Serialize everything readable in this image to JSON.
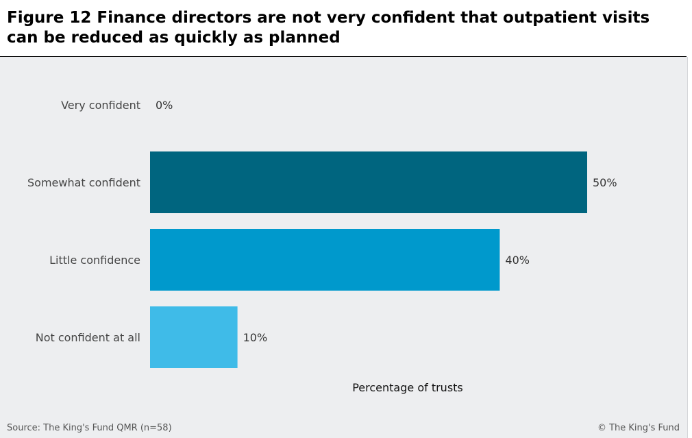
{
  "title": "Figure 12 Finance directors are not very confident that outpatient visits can be reduced as quickly as planned",
  "source": "Source: The King's Fund QMR (n=58)",
  "copyright": "© The King's Fund",
  "chart_data": {
    "type": "bar",
    "orientation": "horizontal",
    "categories": [
      "Very confident",
      "Somewhat confident",
      "Little confidence",
      "Not confident at all"
    ],
    "values": [
      0,
      50,
      40,
      10
    ],
    "value_labels": [
      "0%",
      "50%",
      "40%",
      "10%"
    ],
    "colors": [
      "#00657f",
      "#00657f",
      "#0099cc",
      "#3fbbe8"
    ],
    "xlabel": "Percentage of trusts",
    "ylabel": "",
    "xlim": [
      0,
      50
    ],
    "grid": false,
    "legend": "none"
  }
}
